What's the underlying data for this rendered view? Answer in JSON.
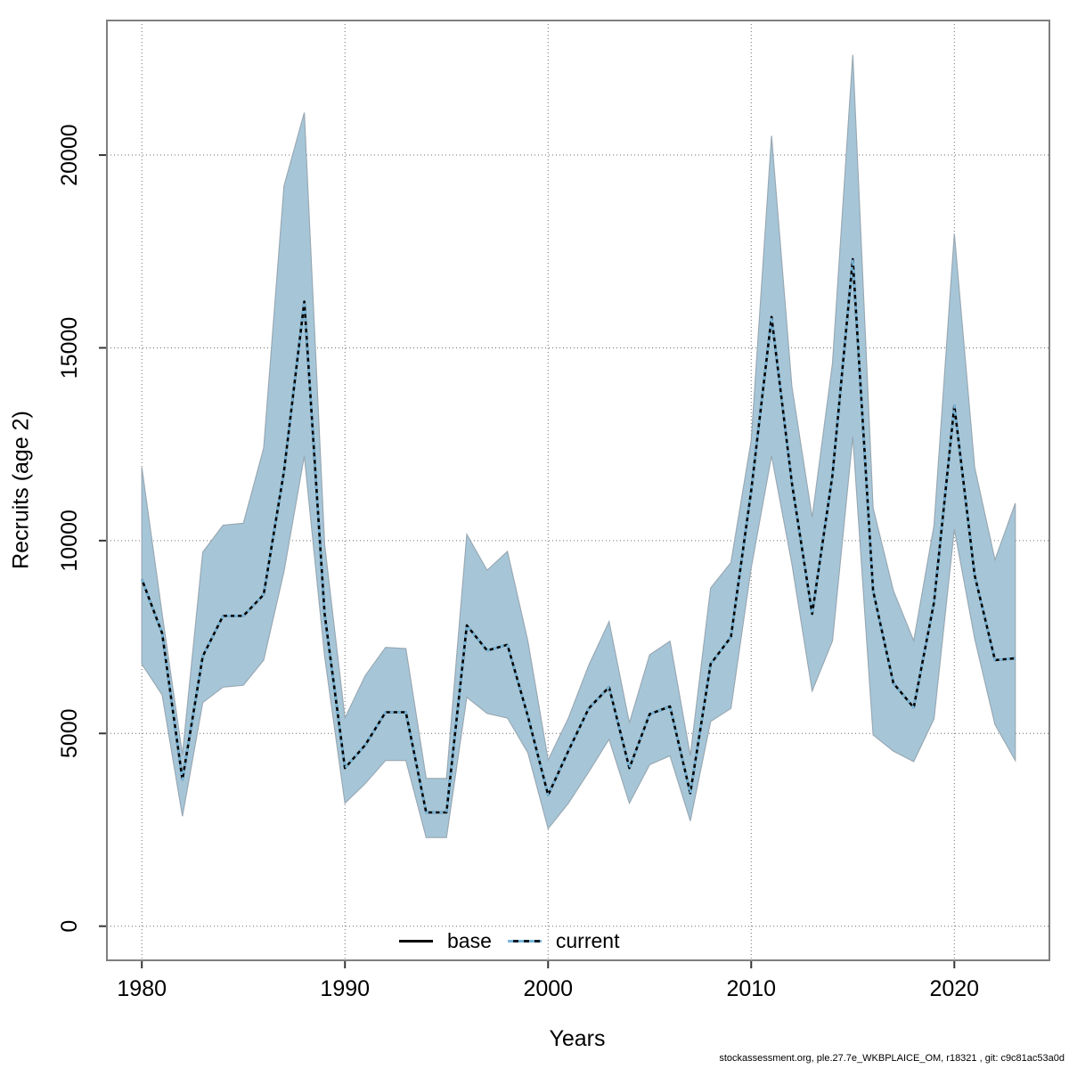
{
  "footer": "stockassessment.org, ple.27.7e_WKBPLAICE_OM, r18321 , git: c9c81ac53a0d",
  "legend": {
    "base_label": "base",
    "current_label": "current"
  },
  "chart_data": {
    "type": "line",
    "title": "",
    "xlabel": "Years",
    "ylabel": "Recruits (age 2)",
    "legend_position": "bottom-center-inside",
    "grid": "dotted",
    "x_ticks": [
      1980,
      1990,
      2000,
      2010,
      2020
    ],
    "y_ticks": [
      0,
      5000,
      10000,
      15000,
      20000
    ],
    "xlim": [
      1978.28,
      2024.68
    ],
    "ylim": [
      -885,
      23490
    ],
    "years": [
      1980,
      1981,
      1982,
      1983,
      1984,
      1985,
      1986,
      1987,
      1988,
      1989,
      1990,
      1991,
      1992,
      1993,
      1994,
      1995,
      1996,
      1997,
      1998,
      1999,
      2000,
      2001,
      2002,
      2003,
      2004,
      2005,
      2006,
      2007,
      2008,
      2009,
      2010,
      2011,
      2012,
      2013,
      2014,
      2015,
      2016,
      2017,
      2018,
      2019,
      2020,
      2021,
      2022,
      2023
    ],
    "series": [
      {
        "name": "base",
        "style": "solid",
        "color": "#000000",
        "values": [
          9000,
          7600,
          3800,
          7000,
          8050,
          8050,
          8600,
          11800,
          16200,
          8100,
          4100,
          4700,
          5550,
          5550,
          2950,
          2950,
          7800,
          7150,
          7300,
          5450,
          3400,
          4550,
          5650,
          6200,
          4100,
          5500,
          5700,
          3450,
          6800,
          7500,
          11300,
          15800,
          11500,
          8100,
          11700,
          17300,
          8700,
          6300,
          5670,
          8400,
          13500,
          9100,
          6900,
          6950
        ]
      },
      {
        "name": "current",
        "style": "dashed",
        "color": "#79b6d9",
        "values": [
          9000,
          7600,
          3800,
          7000,
          8050,
          8050,
          8600,
          11800,
          16200,
          8100,
          4100,
          4700,
          5550,
          5550,
          2950,
          2950,
          7800,
          7150,
          7300,
          5450,
          3400,
          4550,
          5650,
          6200,
          4100,
          5500,
          5700,
          3450,
          6800,
          7500,
          11300,
          15800,
          11500,
          8100,
          11700,
          17300,
          8700,
          6300,
          5670,
          8400,
          13500,
          9100,
          6900,
          6950
        ]
      }
    ],
    "band": {
      "series": "current",
      "fill": "#a6c6d8",
      "edge": "#99a9b4",
      "lo": [
        6800,
        6000,
        2850,
        5800,
        6200,
        6250,
        6900,
        9200,
        12200,
        7000,
        3190,
        3700,
        4300,
        4300,
        2300,
        2300,
        5940,
        5520,
        5400,
        4500,
        2530,
        3190,
        4000,
        4850,
        3190,
        4190,
        4420,
        2730,
        5310,
        5650,
        9300,
        12200,
        9400,
        6100,
        7400,
        12700,
        4960,
        4540,
        4270,
        5380,
        10300,
        7460,
        5230,
        4300
      ],
      "hi": [
        11900,
        8100,
        4450,
        9700,
        10400,
        10450,
        12400,
        19200,
        21100,
        9900,
        5400,
        6500,
        7230,
        7200,
        3830,
        3830,
        10160,
        9230,
        9720,
        7400,
        4310,
        5400,
        6770,
        7900,
        5270,
        7040,
        7390,
        4420,
        8770,
        9430,
        12600,
        20500,
        14000,
        10600,
        14600,
        22600,
        10850,
        8700,
        7400,
        10400,
        17960,
        11900,
        9500,
        10970
      ]
    },
    "colors": {
      "grid": "#474747",
      "plot_border": "#7f7f7f",
      "tick": "#363636",
      "text": "#000000"
    }
  }
}
